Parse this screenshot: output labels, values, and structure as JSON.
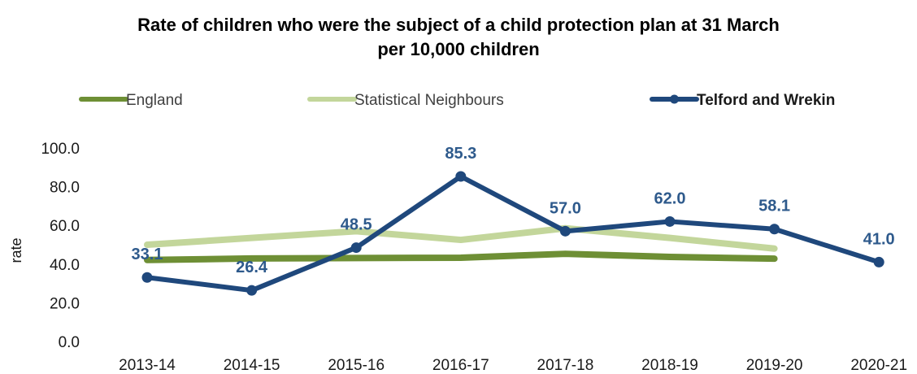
{
  "chart_data": {
    "type": "line",
    "title": "Rate of children who were the subject of a child protection plan at 31 March",
    "subtitle": "per 10,000 children",
    "xlabel": "",
    "ylabel": "rate",
    "categories": [
      "2013-14",
      "2014-15",
      "2015-16",
      "2016-17",
      "2017-18",
      "2018-19",
      "2019-20",
      "2020-21"
    ],
    "ylim": [
      0,
      100
    ],
    "yticks": [
      "0.0",
      "20.0",
      "40.0",
      "60.0",
      "80.0",
      "100.0"
    ],
    "grid": false,
    "legend": "top",
    "series": [
      {
        "name": "England",
        "color": "#6e8f35",
        "markers": false,
        "values": [
          42.1,
          42.9,
          43.1,
          43.3,
          45.3,
          43.7,
          42.8,
          null
        ],
        "labels": []
      },
      {
        "name": "Statistical Neighbours",
        "color": "#c3d69b",
        "markers": false,
        "values": [
          50.0,
          53.5,
          57.0,
          52.5,
          58.5,
          53.5,
          48.0,
          null
        ],
        "labels": []
      },
      {
        "name": "Telford and Wrekin",
        "color": "#1f487c",
        "markers": true,
        "values": [
          33.1,
          26.4,
          48.5,
          85.3,
          57.0,
          62.0,
          58.1,
          41.0
        ],
        "labels": [
          "33.1",
          "26.4",
          "48.5",
          "85.3",
          "57.0",
          "62.0",
          "58.1",
          "41.0"
        ]
      }
    ]
  }
}
